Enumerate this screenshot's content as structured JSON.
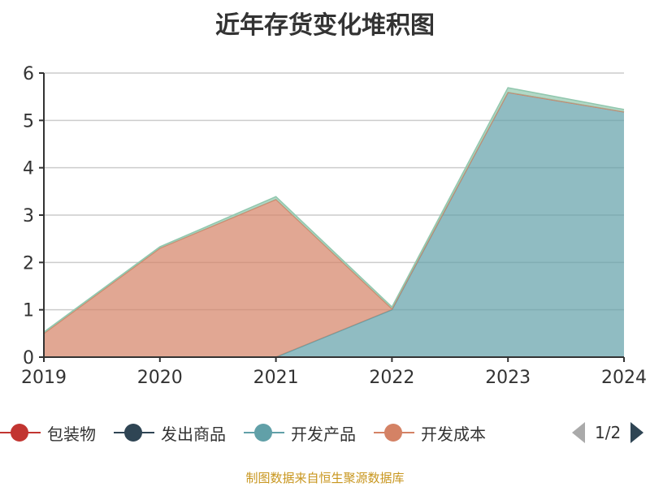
{
  "title": "近年存货变化堆积图",
  "legend": {
    "items": [
      {
        "label": "包装物",
        "color": "#c23531"
      },
      {
        "label": "发出商品",
        "color": "#2f4554"
      },
      {
        "label": "开发产品",
        "color": "#61a0a8"
      },
      {
        "label": "开发成本",
        "color": "#d48265"
      }
    ],
    "page": "1/2"
  },
  "footer": "制图数据来自恒生聚源数据库",
  "chart_data": {
    "type": "area",
    "stacked": true,
    "categories": [
      "2019",
      "2020",
      "2021",
      "2022",
      "2023",
      "2024"
    ],
    "ylim": [
      0,
      6
    ],
    "yticks": [
      0,
      1,
      2,
      3,
      4,
      5,
      6
    ],
    "grid": true,
    "series": [
      {
        "name": "包装物",
        "color": "#c23531",
        "values": [
          0,
          0,
          0,
          0,
          0,
          0
        ]
      },
      {
        "name": "发出商品",
        "color": "#2f4554",
        "values": [
          0,
          0,
          0,
          0,
          0,
          0
        ]
      },
      {
        "name": "开发产品",
        "color": "#61a0a8",
        "values": [
          0,
          0,
          0,
          1.0,
          5.59,
          5.18
        ]
      },
      {
        "name": "开发成本",
        "color": "#d48265",
        "values": [
          0.5,
          2.3,
          3.33,
          0.02,
          0,
          0
        ]
      },
      {
        "color": "#91c7ae",
        "values": [
          0.03,
          0.03,
          0.06,
          0.04,
          0.1,
          0.05
        ]
      }
    ]
  }
}
